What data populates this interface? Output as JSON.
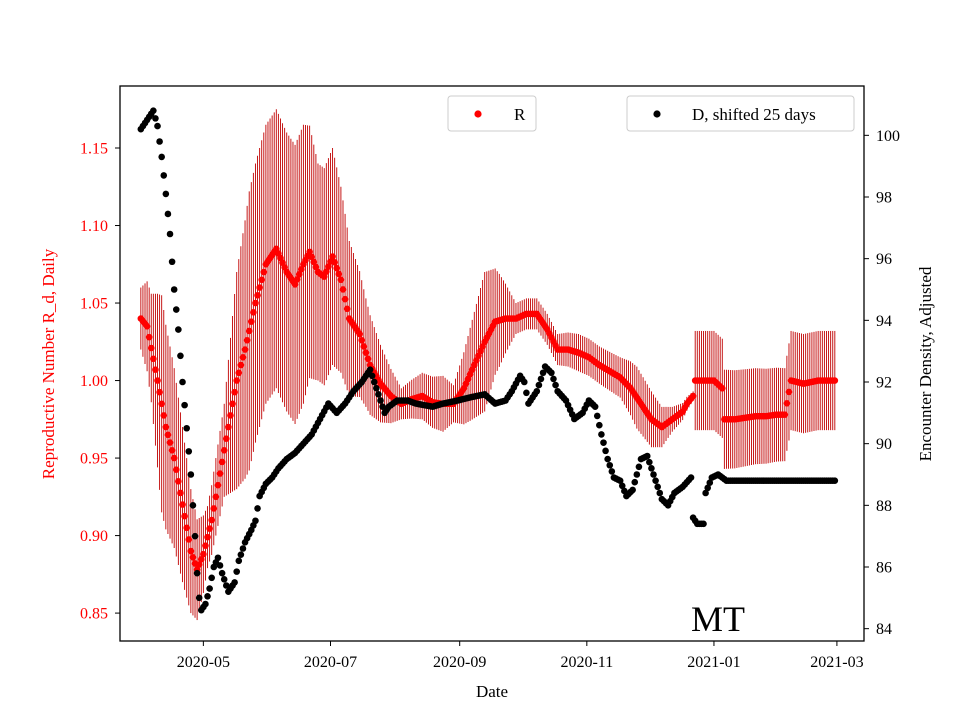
{
  "chart_data": {
    "type": "scatter",
    "title": "",
    "state_label": "MT",
    "xlabel": "Date",
    "ylabel_left": "Reproductive Number R_d, Daily",
    "ylabel_right": "Encounter Density, Adjusted",
    "x_range": [
      -10,
      347
    ],
    "x_ticks": [
      {
        "day": 30,
        "label": "2020-05"
      },
      {
        "day": 91,
        "label": "2020-07"
      },
      {
        "day": 153,
        "label": "2020-09"
      },
      {
        "day": 214,
        "label": "2020-11"
      },
      {
        "day": 275,
        "label": "2021-01"
      },
      {
        "day": 334,
        "label": "2021-03"
      }
    ],
    "y_left_range": [
      0.832,
      1.19
    ],
    "y_left_ticks": [
      "0.85",
      "0.90",
      "0.95",
      "1.00",
      "1.05",
      "1.10",
      "1.15"
    ],
    "y_right_range": [
      83.6,
      101.6
    ],
    "y_right_ticks": [
      "84",
      "86",
      "88",
      "90",
      "92",
      "94",
      "96",
      "98",
      "100"
    ],
    "colors": {
      "r_series": "#ff0000",
      "r_band": "#c00000",
      "d_series": "#000000",
      "left_axis": "#ff0000"
    },
    "legend": [
      {
        "label": "R",
        "color": "#ff0000",
        "position": "top-center"
      },
      {
        "label": "D, shifted 25 days",
        "color": "#000000",
        "position": "top-right"
      }
    ],
    "series": [
      {
        "name": "R",
        "axis": "left",
        "knots": [
          [
            0,
            1.04
          ],
          [
            3,
            1.035
          ],
          [
            8,
            1.0
          ],
          [
            12,
            0.97
          ],
          [
            16,
            0.95
          ],
          [
            20,
            0.92
          ],
          [
            24,
            0.89
          ],
          [
            27,
            0.878
          ],
          [
            30,
            0.888
          ],
          [
            34,
            0.91
          ],
          [
            38,
            0.94
          ],
          [
            42,
            0.97
          ],
          [
            46,
            1.0
          ],
          [
            50,
            1.02
          ],
          [
            55,
            1.05
          ],
          [
            60,
            1.075
          ],
          [
            65,
            1.085
          ],
          [
            70,
            1.07
          ],
          [
            74,
            1.062
          ],
          [
            78,
            1.075
          ],
          [
            81,
            1.083
          ],
          [
            85,
            1.07
          ],
          [
            88,
            1.067
          ],
          [
            92,
            1.08
          ],
          [
            96,
            1.065
          ],
          [
            100,
            1.04
          ],
          [
            105,
            1.03
          ],
          [
            110,
            1.01
          ],
          [
            115,
            0.998
          ],
          [
            120,
            0.99
          ],
          [
            125,
            0.985
          ],
          [
            130,
            0.988
          ],
          [
            135,
            0.99
          ],
          [
            140,
            0.986
          ],
          [
            145,
            0.985
          ],
          [
            150,
            0.985
          ],
          [
            155,
            0.995
          ],
          [
            160,
            1.01
          ],
          [
            165,
            1.025
          ],
          [
            170,
            1.038
          ],
          [
            175,
            1.04
          ],
          [
            180,
            1.04
          ],
          [
            185,
            1.043
          ],
          [
            190,
            1.043
          ],
          [
            195,
            1.033
          ],
          [
            200,
            1.02
          ],
          [
            205,
            1.02
          ],
          [
            210,
            1.018
          ],
          [
            215,
            1.015
          ],
          [
            220,
            1.01
          ],
          [
            225,
            1.006
          ],
          [
            230,
            1.002
          ],
          [
            235,
            0.995
          ],
          [
            240,
            0.985
          ],
          [
            245,
            0.975
          ],
          [
            250,
            0.97
          ],
          [
            255,
            0.975
          ],
          [
            260,
            0.98
          ],
          [
            262,
            0.985
          ],
          [
            265,
            0.99
          ],
          [
            266,
            1.0
          ],
          [
            270,
            1.0
          ],
          [
            275,
            1.0
          ],
          [
            279,
            0.995
          ],
          [
            280,
            0.975
          ],
          [
            285,
            0.975
          ],
          [
            290,
            0.976
          ],
          [
            295,
            0.977
          ],
          [
            300,
            0.977
          ],
          [
            305,
            0.978
          ],
          [
            309,
            0.978
          ],
          [
            312,
            1.0
          ],
          [
            318,
            0.998
          ],
          [
            325,
            1.0
          ],
          [
            330,
            1.0
          ],
          [
            333,
            1.0
          ]
        ],
        "uncertainty": [
          [
            0,
            0.02
          ],
          [
            5,
            0.035
          ],
          [
            10,
            0.07
          ],
          [
            15,
            0.06
          ],
          [
            20,
            0.05
          ],
          [
            26,
            0.035
          ],
          [
            32,
            0.02
          ],
          [
            40,
            0.03
          ],
          [
            46,
            0.07
          ],
          [
            52,
            0.09
          ],
          [
            58,
            0.09
          ],
          [
            64,
            0.09
          ],
          [
            70,
            0.09
          ],
          [
            78,
            0.09
          ],
          [
            85,
            0.07
          ],
          [
            92,
            0.07
          ],
          [
            100,
            0.05
          ],
          [
            108,
            0.035
          ],
          [
            115,
            0.025
          ],
          [
            125,
            0.01
          ],
          [
            135,
            0.015
          ],
          [
            145,
            0.018
          ],
          [
            150,
            0.012
          ],
          [
            158,
            0.03
          ],
          [
            165,
            0.045
          ],
          [
            172,
            0.03
          ],
          [
            180,
            0.01
          ],
          [
            190,
            0.01
          ],
          [
            200,
            0.01
          ],
          [
            210,
            0.012
          ],
          [
            220,
            0.012
          ],
          [
            230,
            0.013
          ],
          [
            238,
            0.02
          ],
          [
            245,
            0.018
          ],
          [
            255,
            0.008
          ],
          [
            265,
            0.003
          ],
          [
            266,
            0.032
          ],
          [
            279,
            0.032
          ],
          [
            280,
            0.032
          ],
          [
            309,
            0.03
          ],
          [
            312,
            0.032
          ],
          [
            333,
            0.032
          ]
        ]
      },
      {
        "name": "D, shifted 25 days",
        "axis": "right",
        "knots": [
          [
            0,
            100.2
          ],
          [
            3,
            100.5
          ],
          [
            6,
            100.8
          ],
          [
            8,
            100.3
          ],
          [
            10,
            99.3
          ],
          [
            12,
            98.1
          ],
          [
            14,
            96.8
          ],
          [
            16,
            95.0
          ],
          [
            18,
            93.7
          ],
          [
            20,
            92.0
          ],
          [
            22,
            90.5
          ],
          [
            24,
            89.0
          ],
          [
            25,
            88.0
          ],
          [
            26,
            87.0
          ],
          [
            27,
            85.8
          ],
          [
            28,
            85.0
          ],
          [
            29,
            84.6
          ],
          [
            31,
            84.8
          ],
          [
            33,
            85.3
          ],
          [
            35,
            86.0
          ],
          [
            37,
            86.3
          ],
          [
            39,
            85.8
          ],
          [
            42,
            85.2
          ],
          [
            45,
            85.5
          ],
          [
            47,
            86.2
          ],
          [
            50,
            86.8
          ],
          [
            53,
            87.2
          ],
          [
            55,
            87.5
          ],
          [
            57,
            88.3
          ],
          [
            60,
            88.7
          ],
          [
            63,
            88.9
          ],
          [
            66,
            89.2
          ],
          [
            70,
            89.5
          ],
          [
            74,
            89.7
          ],
          [
            78,
            90.0
          ],
          [
            82,
            90.3
          ],
          [
            86,
            90.8
          ],
          [
            90,
            91.3
          ],
          [
            94,
            91.0
          ],
          [
            98,
            91.3
          ],
          [
            102,
            91.7
          ],
          [
            106,
            92.0
          ],
          [
            110,
            92.4
          ],
          [
            115,
            91.4
          ],
          [
            117,
            91.0
          ],
          [
            119,
            91.2
          ],
          [
            123,
            91.4
          ],
          [
            128,
            91.4
          ],
          [
            132,
            91.3
          ],
          [
            140,
            91.2
          ],
          [
            145,
            91.3
          ],
          [
            152,
            91.4
          ],
          [
            158,
            91.5
          ],
          [
            165,
            91.6
          ],
          [
            170,
            91.3
          ],
          [
            175,
            91.4
          ],
          [
            178,
            91.7
          ],
          [
            182,
            92.2
          ],
          [
            184,
            92.0
          ],
          [
            186,
            91.3
          ],
          [
            190,
            91.7
          ],
          [
            194,
            92.5
          ],
          [
            197,
            92.3
          ],
          [
            200,
            91.7
          ],
          [
            204,
            91.4
          ],
          [
            208,
            90.8
          ],
          [
            212,
            91.0
          ],
          [
            215,
            91.4
          ],
          [
            218,
            91.2
          ],
          [
            221,
            90.3
          ],
          [
            224,
            89.5
          ],
          [
            227,
            88.9
          ],
          [
            230,
            88.8
          ],
          [
            233,
            88.3
          ],
          [
            236,
            88.5
          ],
          [
            240,
            89.5
          ],
          [
            243,
            89.6
          ],
          [
            246,
            89.0
          ],
          [
            250,
            88.2
          ],
          [
            253,
            88.0
          ],
          [
            256,
            88.4
          ],
          [
            260,
            88.6
          ],
          [
            264,
            88.9
          ],
          [
            265,
            87.6
          ],
          [
            267,
            87.4
          ],
          [
            270,
            87.4
          ],
          [
            271,
            88.4
          ],
          [
            274,
            88.9
          ],
          [
            277,
            89.0
          ],
          [
            281,
            88.8
          ],
          [
            290,
            88.8
          ],
          [
            300,
            88.8
          ],
          [
            310,
            88.8
          ],
          [
            320,
            88.8
          ],
          [
            333,
            88.8
          ]
        ]
      }
    ]
  }
}
